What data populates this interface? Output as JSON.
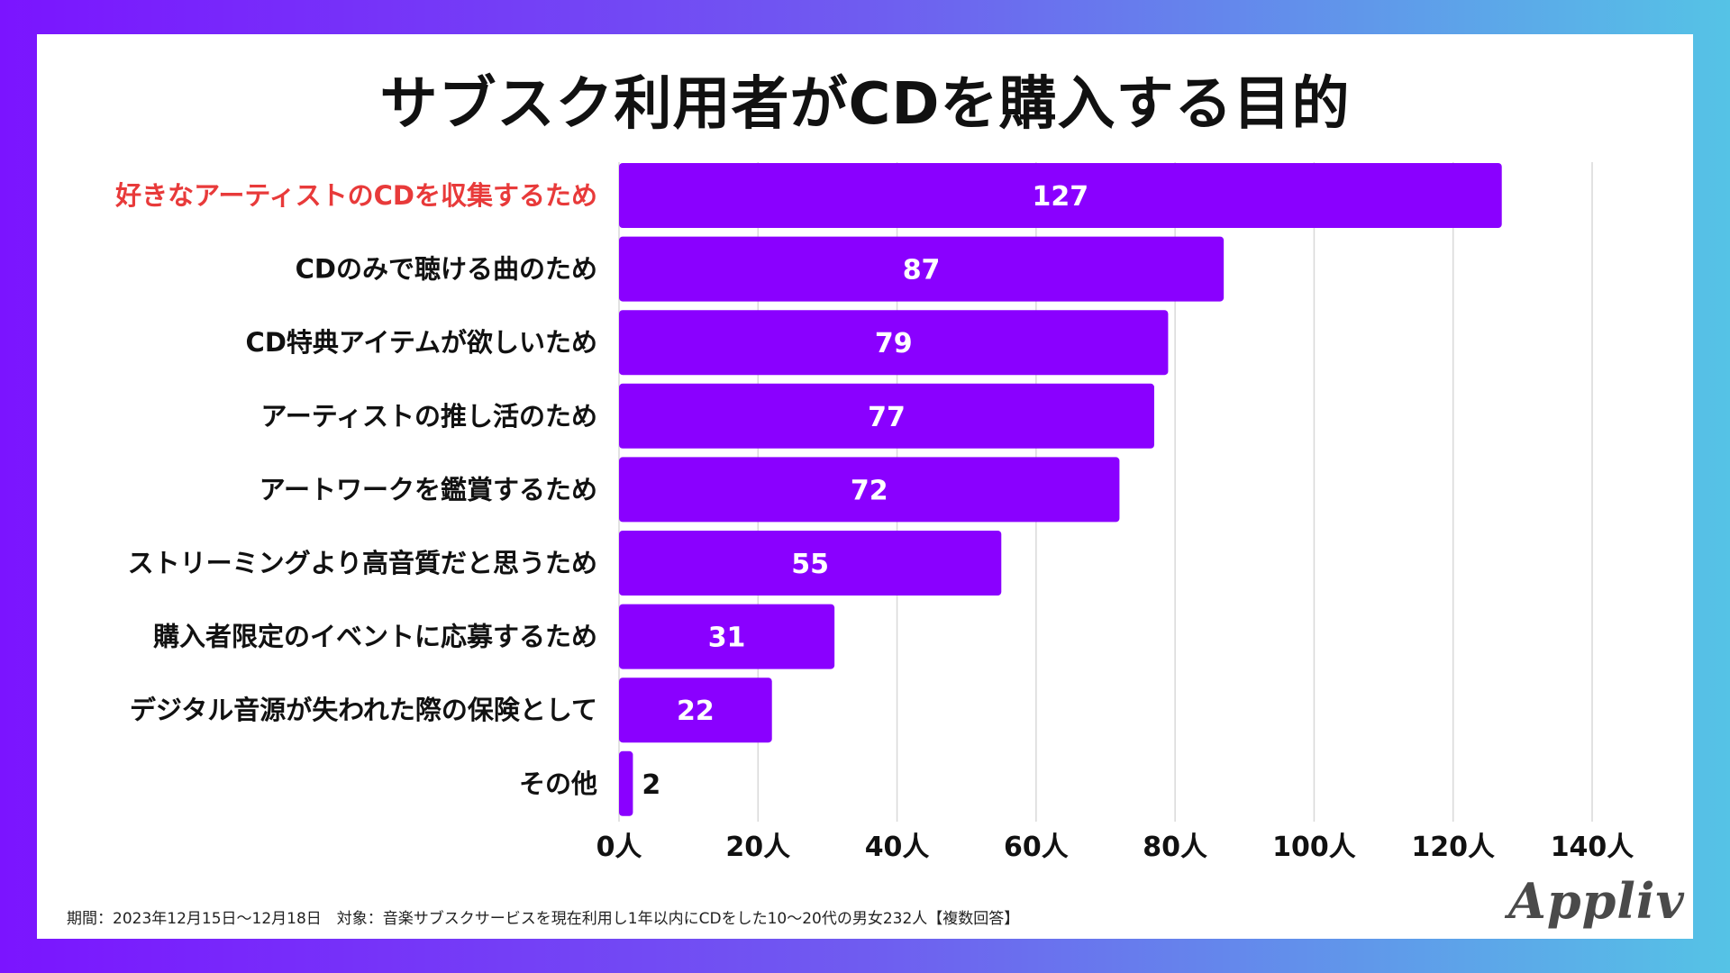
{
  "title": "サブスク利用者がCDを購入する目的",
  "footer_note": "期間：2023年12月15日〜12月18日　対象：音楽サブスクサービスを現在利用し1年以内にCDをした10〜20代の男女232人【複数回答】",
  "logo_text": "Appliv",
  "colors": {
    "bar": "#8a00ff",
    "highlight_label": "#e83a3a",
    "label": "#111111",
    "value_inside": "#ffffff",
    "value_outside": "#111111",
    "grid": "#d9d9d9"
  },
  "chart_data": {
    "type": "bar",
    "orientation": "horizontal",
    "title": "サブスク利用者がCDを購入する目的",
    "categories": [
      "好きなアーティストのCDを収集するため",
      "CDのみで聴ける曲のため",
      "CD特典アイテムが欲しいため",
      "アーティストの推し活のため",
      "アートワークを鑑賞するため",
      "ストリーミングより高音質だと思うため",
      "購入者限定のイベントに応募するため",
      "デジタル音源が失われた際の保険として",
      "その他"
    ],
    "values": [
      127,
      87,
      79,
      77,
      72,
      55,
      31,
      22,
      2
    ],
    "highlight_index": 0,
    "xlim": [
      0,
      140
    ],
    "xticks": [
      0,
      20,
      40,
      60,
      80,
      100,
      120,
      140
    ],
    "xtick_labels": [
      "0人",
      "20人",
      "40人",
      "60人",
      "80人",
      "100人",
      "120人",
      "140人"
    ],
    "xlabel": "",
    "ylabel": "",
    "grid": true
  }
}
